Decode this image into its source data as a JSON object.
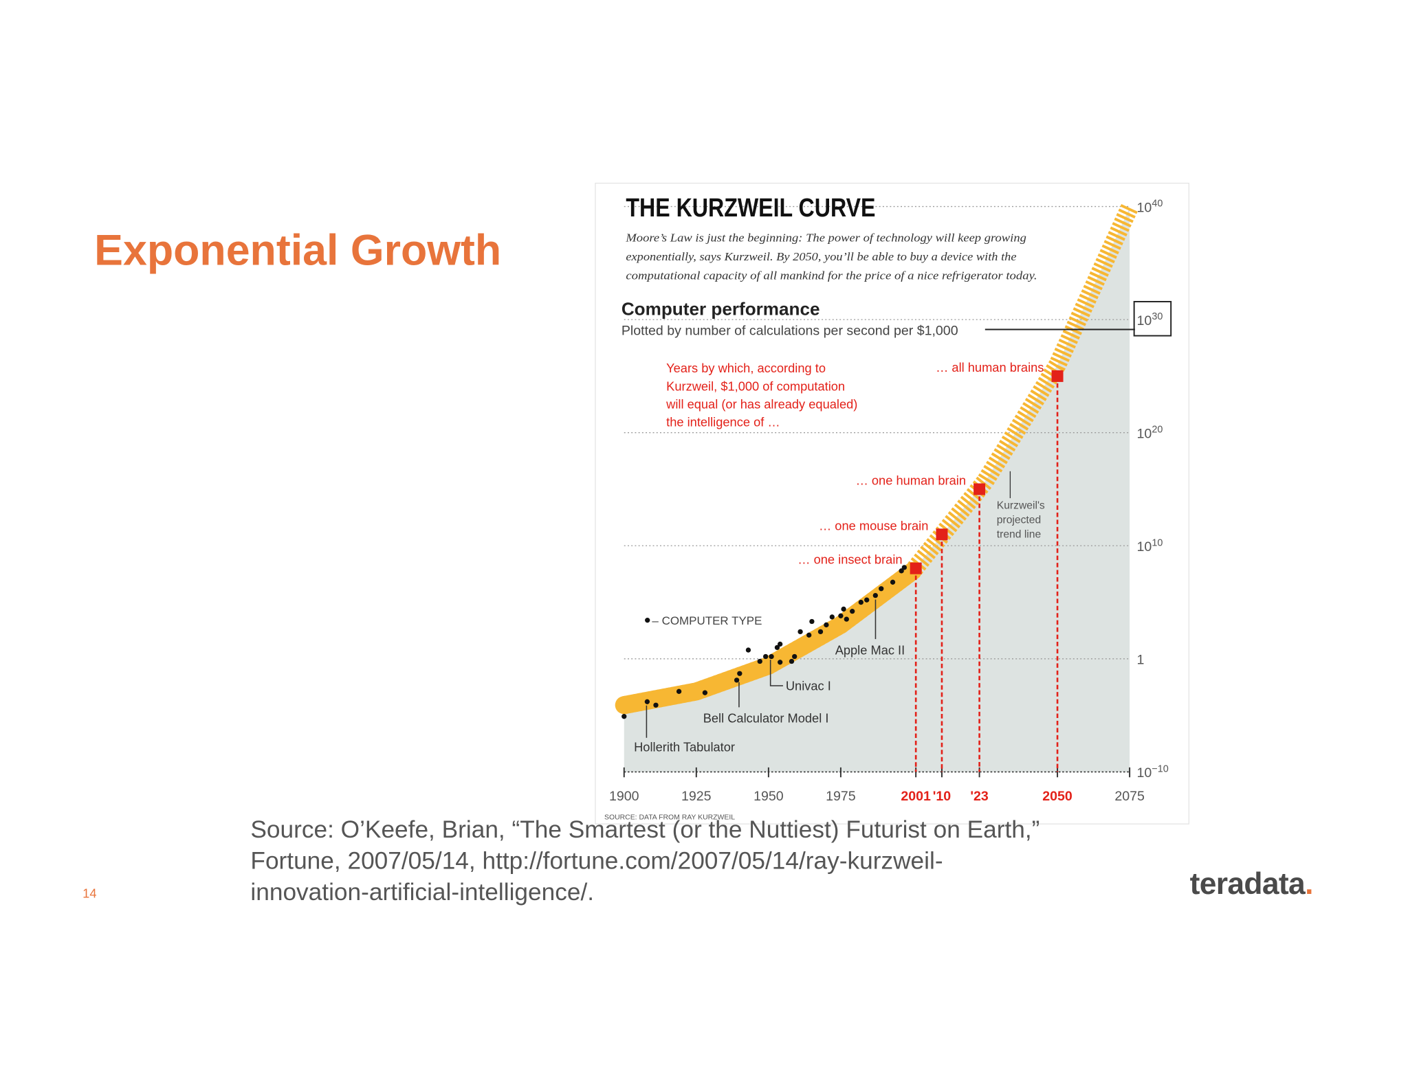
{
  "slide": {
    "title": "Exponential Growth",
    "page_number": "14",
    "source": [
      "Source: O’Keefe, Brian, “The Smartest (or the Nuttiest) Futurist on Earth,”",
      "Fortune, 2007/05/14, http://fortune.com/2007/05/14/ray-kurzweil-",
      "innovation-artificial-intelligence/."
    ],
    "logo": "teradata."
  },
  "chart_data": {
    "type": "scatter",
    "title": "THE KURZWEIL CURVE",
    "subtitle": [
      "Moore’s Law is just the beginning: The power of technology will keep growing",
      "exponentially, says Kurzweil. By 2050, you’ll be able to buy a device with the",
      "computational capacity of all mankind for the price of a nice refrigerator today."
    ],
    "y_label": "Computer performance",
    "y_sublabel": "Plotted by number of calculations per second per $1,000",
    "note": [
      "Years by which, according to",
      "Kurzweil, $1,000 of computation",
      "will equal (or has already equaled)",
      "the intelligence of …"
    ],
    "legend": "• – COMPUTER TYPE",
    "trend_label": [
      "Kurzweil's",
      "projected",
      "trend line"
    ],
    "source": "SOURCE: DATA FROM RAY KURZWEIL",
    "log_y": true,
    "xlim": [
      1900,
      2075
    ],
    "ylim": [
      1e-10,
      1e+40
    ],
    "xticks": [
      1900,
      1925,
      1950,
      1975,
      2001,
      {
        "value": 2010,
        "label": "'10"
      },
      {
        "value": 2023,
        "label": "'23"
      },
      2050,
      2075
    ],
    "yticks": [
      {
        "value": 1e-10,
        "label": "10^−10"
      },
      1,
      {
        "value": 10000000000.0,
        "label": "10^10"
      },
      {
        "value": 1e+20,
        "label": "10^20"
      },
      {
        "value": 1e+30,
        "label": "10^30"
      },
      {
        "value": 1e+40,
        "label": "10^40"
      }
    ],
    "series": [
      {
        "color": "#111111",
        "x": [
          1900,
          1908,
          1911,
          1919,
          1928,
          1939,
          1940,
          1943,
          1947,
          1949,
          1951,
          1953,
          1954,
          1954,
          1958,
          1959,
          1961,
          1964,
          1965,
          1968,
          1970,
          1972,
          1975,
          1976,
          1977,
          1979,
          1982,
          1984,
          1987,
          1989,
          1993,
          1996,
          1997
        ],
        "values": [
          8e-06,
          0.00016,
          8e-05,
          0.0013,
          0.001,
          0.013,
          0.05,
          6,
          0.6,
          1.6,
          1.6,
          10,
          20,
          0.5,
          0.6,
          1.6,
          250,
          125,
          2000,
          250,
          1000,
          5000,
          6300,
          25000,
          3200,
          16000,
          100000,
          160000,
          400000,
          1600000,
          6000000,
          60000000,
          120000000
        ]
      }
    ],
    "computers": [
      "Apple Mac II",
      "Univac I",
      "Bell Calculator Model I",
      "Hollerith Tabulator"
    ],
    "trend": {
      "color": "#f7b733",
      "x": [
        1900,
        1925,
        1950,
        1975,
        2000,
        2025,
        2050,
        2075
      ],
      "values": [
        8e-05,
        0.0013,
        0.25,
        1000,
        60000000.0,
        5000000000000000.0,
        1e+26,
        8e+39
      ]
    },
    "milestones": {
      "color": "#e32119",
      "x": [
        2001,
        2010,
        2023,
        2050
      ],
      "values": [
        100000000.0,
        100000000000.0,
        1000000000000000.0,
        1e+25
      ],
      "labels": [
        "… one insect brain",
        "… one mouse brain",
        "… one human brain",
        "… all human brains"
      ]
    }
  }
}
